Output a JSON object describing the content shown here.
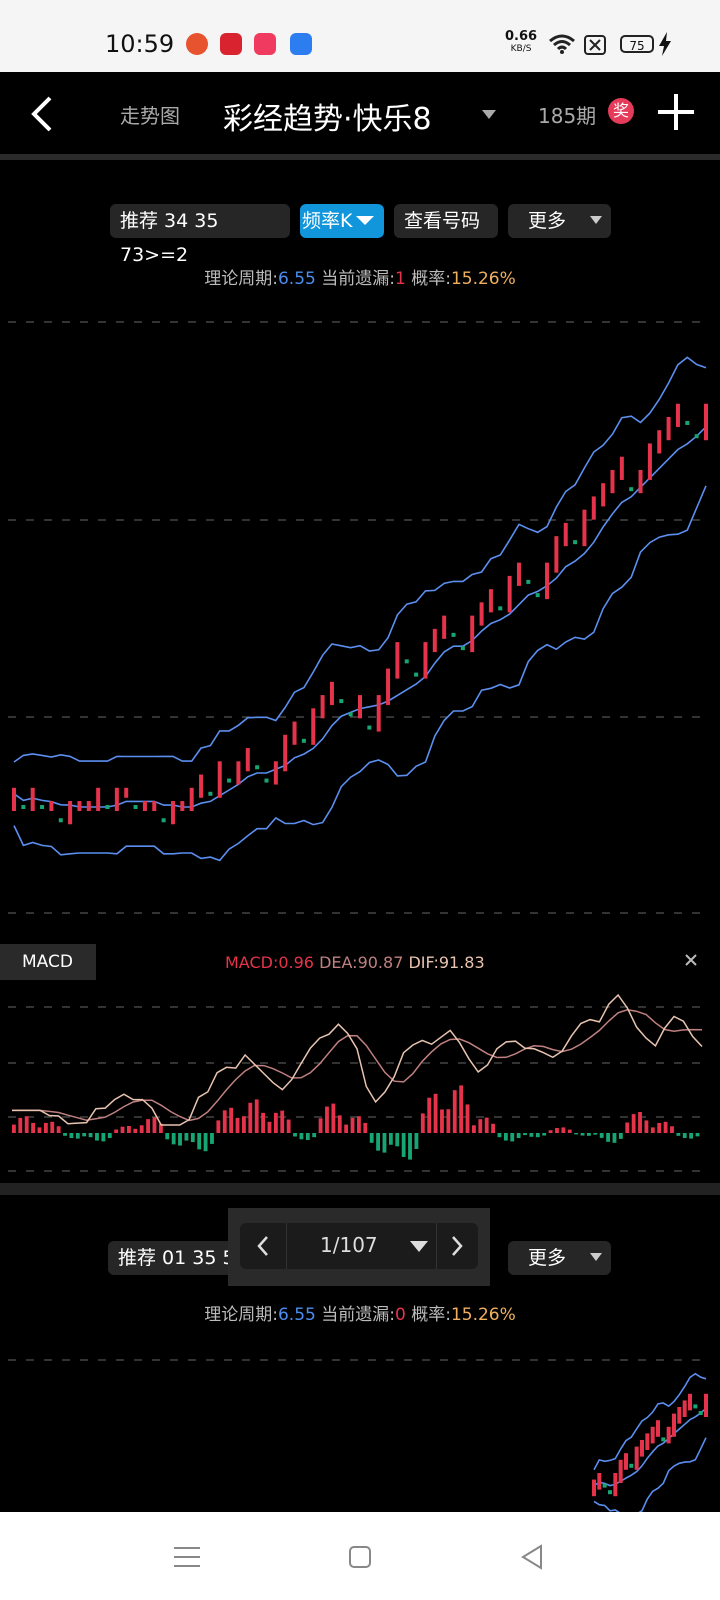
{
  "status_bar": {
    "time": "10:59",
    "speed_value": "0.66",
    "speed_unit": "KB/S",
    "battery": "75",
    "app_icons": [
      "weibo-app-icon",
      "acrobat-app-icon",
      "music-app-icon",
      "mail-app-icon"
    ],
    "icons": [
      "wifi-icon",
      "sim-off-icon",
      "battery-icon",
      "charging-icon"
    ]
  },
  "nav": {
    "back_icon": "chevron-left-icon",
    "tab_label": "走势图",
    "title": "彩经趋势·快乐8",
    "title_dropdown_icon": "caret-down-icon",
    "period": "185期",
    "award_badge": "奖",
    "add_icon": "plus-icon"
  },
  "panel1": {
    "recommend_label": "推荐 34 35 73>=2",
    "freq_k_label": "频率K",
    "view_numbers_label": "查看号码",
    "more_label": "更多",
    "info": {
      "period_label": "理论周期:",
      "period_value": "6.55",
      "miss_label": "当前遗漏:",
      "miss_value": "1",
      "prob_label": "概率:",
      "prob_value": "15.26%"
    }
  },
  "macd": {
    "tab_label": "MACD",
    "macd_text": "MACD:0.96",
    "dea_text": "DEA:90.87",
    "dif_text": "DIF:91.83",
    "close_icon": "close-icon"
  },
  "panel2": {
    "recommend_label": "推荐 01 35 5",
    "more_label": "更多",
    "pager": {
      "text": "1/107",
      "prev_icon": "chevron-left-icon",
      "next_icon": "chevron-right-icon",
      "dropdown_icon": "caret-down-icon"
    },
    "info": {
      "period_label": "理论周期:",
      "period_value": "6.55",
      "miss_label": "当前遗漏:",
      "miss_value": "0",
      "prob_label": "概率:",
      "prob_value": "15.26%"
    }
  },
  "bottom_nav": {
    "icons": [
      "menu-icon",
      "home-square-icon",
      "back-triangle-icon"
    ]
  },
  "colors": {
    "up": "#e5334b",
    "down": "#17a673",
    "band": "#5b8ff0",
    "dif": "#e8c4b0",
    "dea": "#c08080",
    "accent_blue": "#1296db"
  },
  "chart_data": [
    {
      "type": "line",
      "title": "",
      "description_source": "频率K",
      "series": [
        {
          "name": "",
          "values": [
            1,
            0,
            1,
            0,
            0,
            -1,
            0,
            0,
            0,
            1,
            0,
            1,
            1,
            0,
            0,
            0,
            -1,
            0,
            0,
            1,
            2,
            1,
            3,
            2,
            3,
            4,
            3,
            2,
            3,
            5,
            6,
            5,
            7,
            8,
            9,
            8,
            7,
            8,
            6,
            8,
            10,
            12,
            11,
            10,
            12,
            13,
            14,
            13,
            12,
            14,
            15,
            16,
            15,
            17,
            18,
            17,
            16,
            18,
            20,
            21,
            20,
            22,
            23,
            24,
            25,
            26,
            24,
            25,
            27,
            28,
            29,
            30,
            29,
            28,
            30
          ]
        }
      ],
      "grid": true
    },
    {
      "type": "bar",
      "title": "",
      "series": [
        {
          "name": "MACD",
          "values": [
            1.2,
            0.8,
            -0.4,
            -0.6,
            0.5,
            1.1,
            -0.9,
            -1.3,
            1.8,
            2.4,
            1.6,
            -0.5,
            2.1,
            1.2,
            -1.4,
            -1.9,
            2.8,
            3.4,
            1.1,
            -0.6,
            -0.3,
            0.4,
            -0.2,
            -0.7,
            1.5,
            0.8,
            -0.4
          ]
        }
      ]
    }
  ]
}
